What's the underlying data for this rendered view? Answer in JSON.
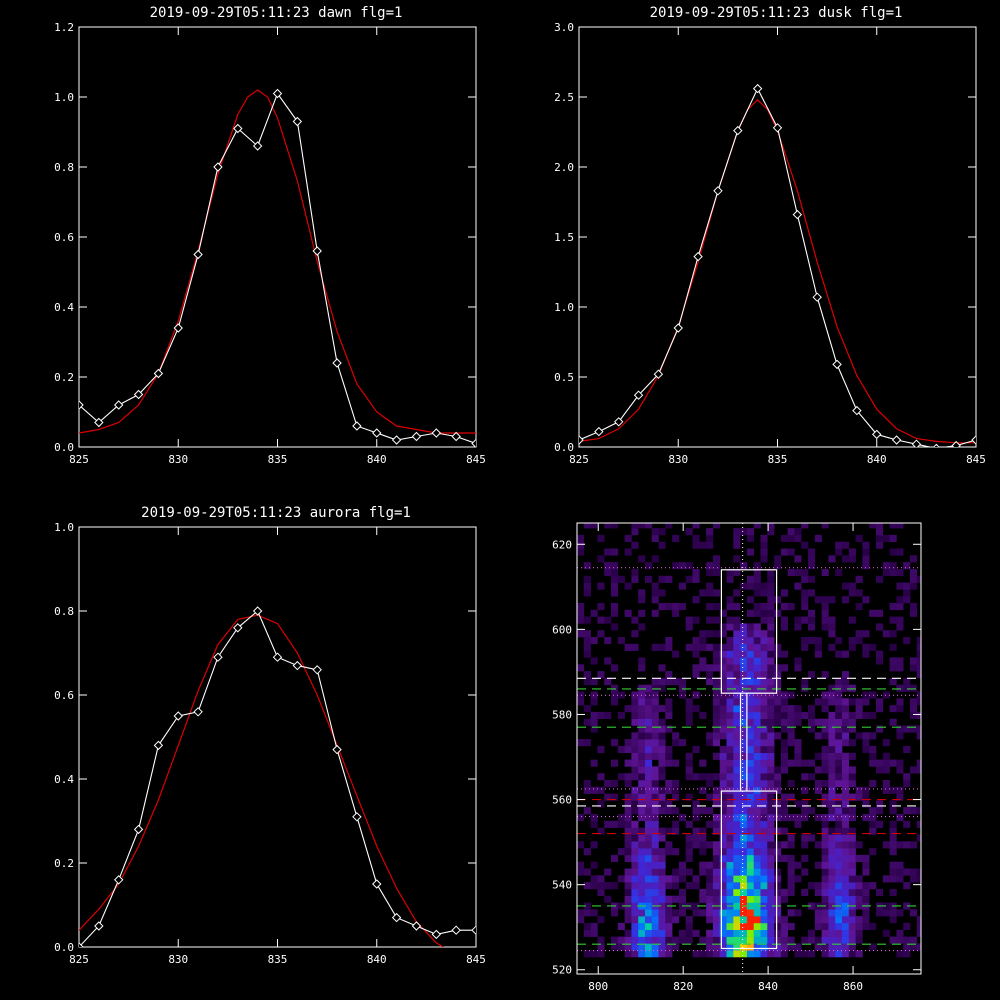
{
  "colors": {
    "background": "#000000",
    "axes": "#ffffff",
    "data_line": "#ffffff",
    "fit_line": "#dd0000",
    "guide_dotted": "#ffffff",
    "marker_green": "#33cc33",
    "marker_red": "#cc0000",
    "marker_white_dash": "#ffffff"
  },
  "chart_data": [
    {
      "id": "dawn",
      "type": "line",
      "title": "2019-09-29T05:11:23 dawn flg=1",
      "xlabel": "",
      "ylabel": "",
      "xlim": [
        825,
        845
      ],
      "ylim": [
        0,
        1.2
      ],
      "xticks": [
        825,
        830,
        835,
        840,
        845
      ],
      "xtick_labels": [
        "825",
        "830",
        "835",
        "840",
        "845"
      ],
      "yticks": [
        0,
        0.2,
        0.4,
        0.6,
        0.8,
        1.0,
        1.2
      ],
      "ytick_labels": [
        "0.0",
        "0.2",
        "0.4",
        "0.6",
        "0.8",
        "1.0",
        "1.2"
      ],
      "series": [
        {
          "kind": "data",
          "marker": "diamond",
          "x": [
            825,
            826,
            827,
            828,
            829,
            830,
            831,
            832,
            833,
            834,
            835,
            836,
            837,
            838,
            839,
            840,
            841,
            842,
            843,
            844,
            845
          ],
          "y": [
            0.12,
            0.07,
            0.12,
            0.15,
            0.21,
            0.34,
            0.55,
            0.8,
            0.91,
            0.86,
            1.01,
            0.93,
            0.56,
            0.24,
            0.06,
            0.04,
            0.02,
            0.03,
            0.04,
            0.03,
            0.01
          ]
        },
        {
          "kind": "fit",
          "x": [
            825,
            826,
            827,
            828,
            829,
            830,
            831,
            832,
            833,
            833.5,
            834,
            834.5,
            835,
            836,
            837,
            838,
            839,
            840,
            841,
            842,
            843,
            844,
            845
          ],
          "y": [
            0.04,
            0.05,
            0.07,
            0.12,
            0.21,
            0.36,
            0.56,
            0.78,
            0.95,
            1.0,
            1.02,
            1.0,
            0.94,
            0.76,
            0.53,
            0.33,
            0.18,
            0.1,
            0.06,
            0.05,
            0.04,
            0.04,
            0.04
          ]
        }
      ]
    },
    {
      "id": "dusk",
      "type": "line",
      "title": "2019-09-29T05:11:23 dusk flg=1",
      "xlabel": "",
      "ylabel": "",
      "xlim": [
        825,
        845
      ],
      "ylim": [
        0,
        3.0
      ],
      "xticks": [
        825,
        830,
        835,
        840,
        845
      ],
      "xtick_labels": [
        "825",
        "830",
        "835",
        "840",
        "845"
      ],
      "yticks": [
        0,
        0.5,
        1.0,
        1.5,
        2.0,
        2.5,
        3.0
      ],
      "ytick_labels": [
        "0.0",
        "0.5",
        "1.0",
        "1.5",
        "2.0",
        "2.5",
        "3.0"
      ],
      "series": [
        {
          "kind": "data",
          "marker": "diamond",
          "x": [
            825,
            826,
            827,
            828,
            829,
            830,
            831,
            832,
            833,
            834,
            835,
            836,
            837,
            838,
            839,
            840,
            841,
            842,
            843,
            844,
            845
          ],
          "y": [
            0.05,
            0.11,
            0.18,
            0.37,
            0.52,
            0.85,
            1.36,
            1.83,
            2.26,
            2.56,
            2.28,
            1.66,
            1.07,
            0.59,
            0.26,
            0.09,
            0.05,
            0.02,
            -0.01,
            0.01,
            0.05
          ]
        },
        {
          "kind": "fit",
          "x": [
            825,
            826,
            827,
            828,
            829,
            830,
            831,
            832,
            833,
            833.5,
            834,
            834.5,
            835,
            836,
            837,
            838,
            839,
            840,
            841,
            842,
            843,
            844,
            845
          ],
          "y": [
            0.04,
            0.06,
            0.13,
            0.27,
            0.51,
            0.86,
            1.32,
            1.83,
            2.26,
            2.41,
            2.48,
            2.41,
            2.26,
            1.83,
            1.32,
            0.86,
            0.51,
            0.27,
            0.13,
            0.06,
            0.04,
            0.03,
            0.03
          ]
        }
      ]
    },
    {
      "id": "aurora",
      "type": "line",
      "title": "2019-09-29T05:11:23 aurora flg=1",
      "xlabel": "",
      "ylabel": "",
      "xlim": [
        825,
        845
      ],
      "ylim": [
        0,
        1.0
      ],
      "xticks": [
        825,
        830,
        835,
        840,
        845
      ],
      "xtick_labels": [
        "825",
        "830",
        "835",
        "840",
        "845"
      ],
      "yticks": [
        0,
        0.2,
        0.4,
        0.6,
        0.8,
        1.0
      ],
      "ytick_labels": [
        "0.0",
        "0.2",
        "0.4",
        "0.6",
        "0.8",
        "1.0"
      ],
      "series": [
        {
          "kind": "data",
          "marker": "diamond",
          "x": [
            825,
            826,
            827,
            828,
            829,
            830,
            831,
            832,
            833,
            834,
            835,
            836,
            837,
            838,
            839,
            840,
            841,
            842,
            843,
            844,
            845
          ],
          "y": [
            0.0,
            0.05,
            0.16,
            0.28,
            0.48,
            0.55,
            0.56,
            0.69,
            0.76,
            0.8,
            0.69,
            0.67,
            0.66,
            0.47,
            0.31,
            0.15,
            0.07,
            0.05,
            0.03,
            0.04,
            0.04
          ]
        },
        {
          "kind": "fit",
          "x": [
            825,
            826,
            827,
            828,
            829,
            830,
            831,
            832,
            833,
            834,
            835,
            836,
            837,
            838,
            839,
            840,
            841,
            842,
            843,
            844,
            845
          ],
          "y": [
            0.04,
            0.09,
            0.15,
            0.24,
            0.35,
            0.48,
            0.61,
            0.72,
            0.78,
            0.79,
            0.77,
            0.7,
            0.6,
            0.48,
            0.36,
            0.24,
            0.14,
            0.06,
            0.01,
            -0.02,
            -0.04
          ]
        }
      ]
    },
    {
      "id": "image",
      "type": "heatmap",
      "title": "",
      "xlabel": "",
      "ylabel": "",
      "xlim": [
        795,
        876
      ],
      "ylim": [
        519,
        625
      ],
      "xticks": [
        800,
        820,
        840,
        860
      ],
      "xtick_labels": [
        "800",
        "820",
        "840",
        "860"
      ],
      "yticks": [
        520,
        540,
        560,
        580,
        600,
        620
      ],
      "ytick_labels": [
        "520",
        "540",
        "560",
        "580",
        "600",
        "620"
      ],
      "emission_columns": [
        {
          "x_center": 811,
          "width": 5,
          "y_from": 523,
          "y_to": 590,
          "peak_y": 530,
          "peak": 0.55
        },
        {
          "x_center": 834,
          "width": 7,
          "y_from": 523,
          "y_to": 605,
          "peak_y": 531,
          "peak": 1.0
        },
        {
          "x_center": 856,
          "width": 5,
          "y_from": 523,
          "y_to": 590,
          "peak_y": 531,
          "peak": 0.4
        }
      ],
      "boxes": [
        {
          "x0": 829,
          "x1": 842,
          "y0": 525,
          "y1": 562
        },
        {
          "x0": 829,
          "x1": 842,
          "y0": 585,
          "y1": 614
        }
      ],
      "vline_x": 834,
      "connector_x": [
        833.5,
        835
      ],
      "hlines": [
        {
          "y": 614.5,
          "style": "dotted",
          "color": "#cc66cc"
        },
        {
          "y": 588.5,
          "style": "dashed",
          "color": "#ffffff"
        },
        {
          "y": 586,
          "style": "dashed",
          "color": "#33cc33"
        },
        {
          "y": 584.5,
          "style": "dotted",
          "color": "#cc66cc"
        },
        {
          "y": 577,
          "style": "dashed",
          "color": "#33cc33"
        },
        {
          "y": 562.5,
          "style": "dotted",
          "color": "#cc66cc"
        },
        {
          "y": 560,
          "style": "dashed",
          "color": "#cc0000"
        },
        {
          "y": 558.5,
          "style": "dashed",
          "color": "#ffffff"
        },
        {
          "y": 556,
          "style": "dotted",
          "color": "#cc66cc"
        },
        {
          "y": 552,
          "style": "dashed",
          "color": "#cc0000"
        },
        {
          "y": 535,
          "style": "dashed",
          "color": "#33cc33"
        },
        {
          "y": 526,
          "style": "dashed",
          "color": "#33cc33"
        },
        {
          "y": 524.5,
          "style": "dotted",
          "color": "#cc66cc"
        }
      ]
    }
  ]
}
